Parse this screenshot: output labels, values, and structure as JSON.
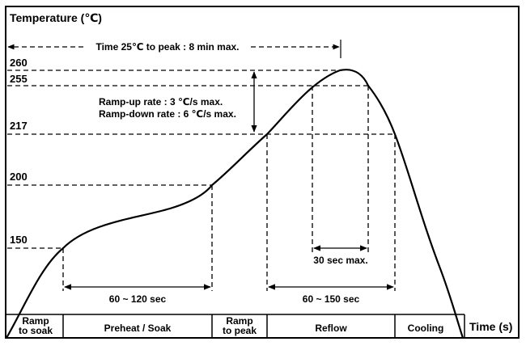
{
  "diagram": {
    "axis_title": "Temperature (℃)",
    "time_label": "Time (s)",
    "temperature_ticks": [
      "260",
      "255",
      "217",
      "200",
      "150"
    ],
    "time_to_peak_label": "Time 25℃ to peak : 8 min max.",
    "ramp_rate_lines": [
      "Ramp-up rate : 3 ℃/s max.",
      "Ramp-down rate : 6 ℃/s max."
    ],
    "durations": {
      "preheat": "60 ~ 120 sec",
      "above_liquidus": "60 ~ 150 sec",
      "peak_window": "30 sec max."
    },
    "phases": [
      {
        "label": [
          "Ramp",
          "to soak"
        ]
      },
      {
        "label": [
          "Preheat / Soak"
        ]
      },
      {
        "label": [
          "Ramp",
          "to peak"
        ]
      },
      {
        "label": [
          "Reflow"
        ]
      },
      {
        "label": [
          "Cooling"
        ]
      }
    ],
    "colors": {
      "line": "#000000",
      "background": "#ffffff"
    }
  }
}
